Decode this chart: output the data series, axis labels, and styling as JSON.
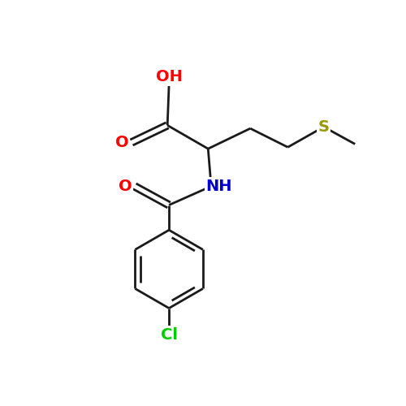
{
  "background_color": "#ffffff",
  "bond_color": "#1a1a1a",
  "line_width": 2.0,
  "atom_colors": {
    "O": "#ff0000",
    "N": "#0000cc",
    "S": "#999900",
    "Cl": "#00cc00",
    "C": "#1a1a1a",
    "H": "#1a1a1a"
  },
  "font_size": 14,
  "figsize": [
    5.0,
    5.0
  ],
  "dpi": 100,
  "xlim": [
    0,
    10
  ],
  "ylim": [
    0,
    10
  ]
}
